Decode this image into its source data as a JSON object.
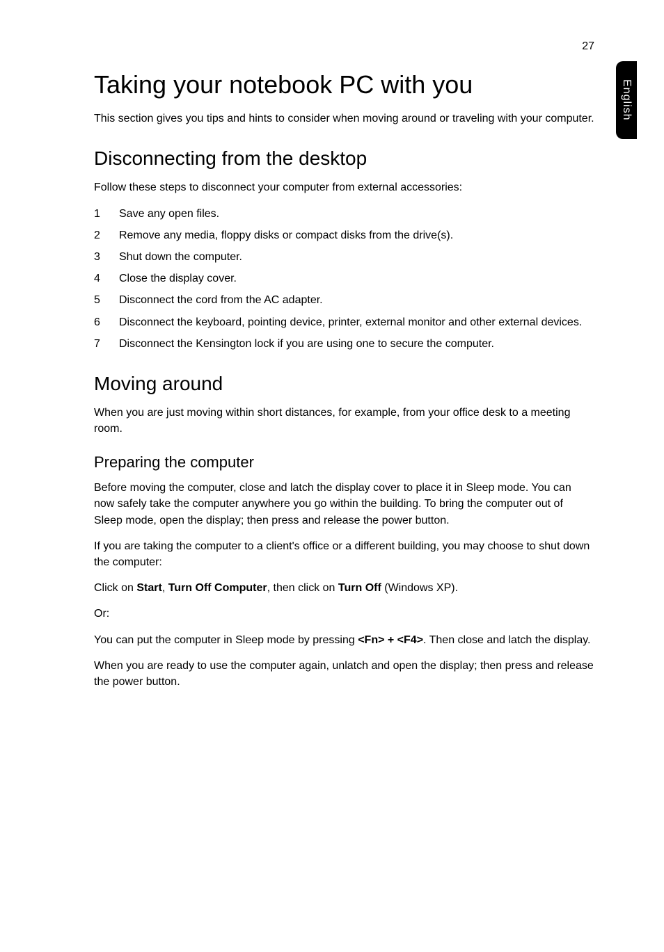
{
  "page_number": "27",
  "side_tab": "English",
  "h1": "Taking your notebook PC with you",
  "intro": "This section gives you tips and hints to consider when moving around or traveling with your computer.",
  "section1": {
    "heading": "Disconnecting from the desktop",
    "para": "Follow these steps to disconnect your computer from external accessories:",
    "items": [
      {
        "n": "1",
        "t": "Save any open files."
      },
      {
        "n": "2",
        "t": "Remove any media, floppy disks or compact disks from the drive(s)."
      },
      {
        "n": "3",
        "t": "Shut down the computer."
      },
      {
        "n": "4",
        "t": "Close the display cover."
      },
      {
        "n": "5",
        "t": "Disconnect the cord from the AC adapter."
      },
      {
        "n": "6",
        "t": "Disconnect the keyboard, pointing device, printer, external monitor and other external devices."
      },
      {
        "n": "7",
        "t": "Disconnect the Kensington lock if you are using one to secure the computer."
      }
    ]
  },
  "section2": {
    "heading": "Moving around",
    "para": "When you are just moving within short distances, for example, from your office desk to a meeting room.",
    "sub": {
      "heading": "Preparing the computer",
      "p1": "Before moving the computer, close and latch the display cover to place it in Sleep mode. You can now safely take the computer anywhere you go within the building. To bring the computer out of Sleep mode, open the display; then press and release the power button.",
      "p2": "If you are taking the computer to a client's office or a different building, you may choose to shut down the computer:",
      "p3_pre": "Click on ",
      "p3_b1": "Start",
      "p3_mid1": ", ",
      "p3_b2": "Turn Off Computer",
      "p3_mid2": ", then click on ",
      "p3_b3": "Turn Off",
      "p3_post": " (Windows XP).",
      "p4": "Or:",
      "p5_pre": "You can put the computer in Sleep mode by pressing ",
      "p5_b1": "<Fn> + <F4>",
      "p5_post": ". Then close and latch the display.",
      "p6": "When you are ready to use the computer again, unlatch and open the display; then press and release the power button."
    }
  }
}
